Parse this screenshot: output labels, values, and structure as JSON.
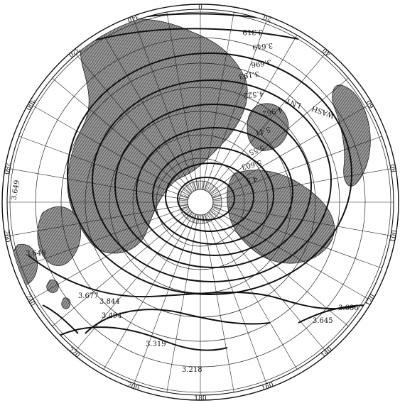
{
  "map": {
    "rim_labels": [
      "0",
      "20",
      "40",
      "60",
      "80",
      "100",
      "120",
      "140",
      "160",
      "180",
      "200",
      "220",
      "240",
      "260",
      "280",
      "300",
      "320",
      "340"
    ],
    "isoline_labels": [
      "3.319",
      "3.649",
      "3.696",
      "3.193",
      "4.522",
      "4.962",
      "5.41",
      "5.55",
      "5.603",
      "4.5",
      "3.649",
      "3.649",
      "3.677",
      "3.844",
      "3.494",
      "3.319",
      "3.218",
      "3.686",
      "3.645"
    ],
    "annotations": [
      "WASH",
      "LNT"
    ],
    "colors": {
      "ink": "#111111",
      "land": "#7a7a7a",
      "paper": "#ffffff"
    }
  }
}
